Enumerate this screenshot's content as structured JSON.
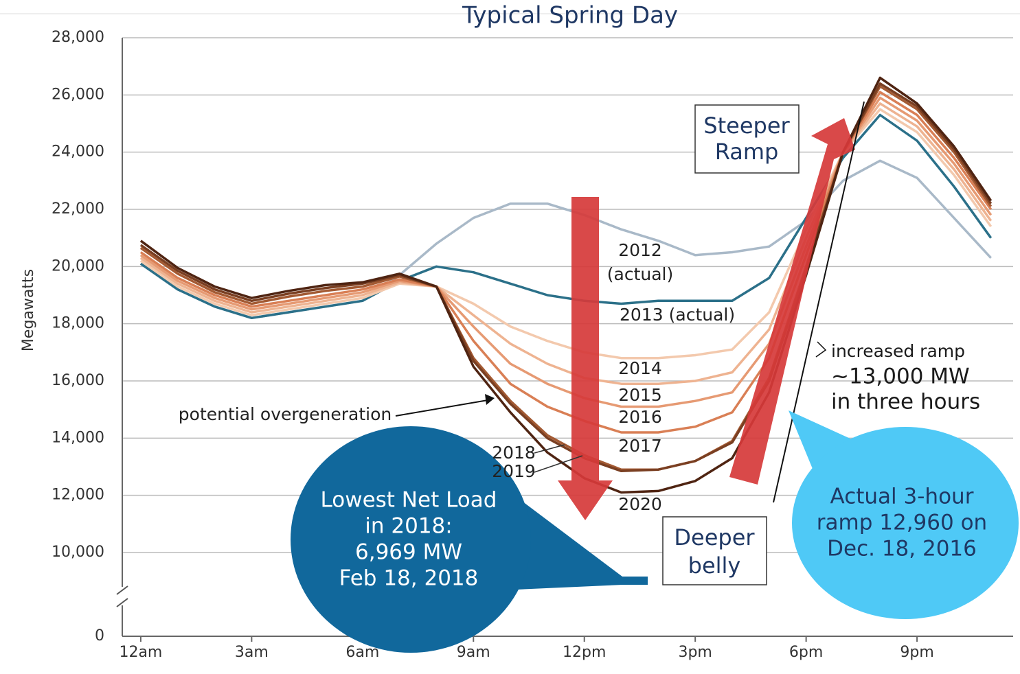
{
  "chart_data": {
    "type": "line",
    "title": "Typical Spring Day",
    "y_label": "Megawatts",
    "x": [
      0,
      1,
      2,
      3,
      4,
      5,
      6,
      7,
      8,
      9,
      10,
      11,
      12,
      13,
      14,
      15,
      16,
      17,
      18,
      19,
      20,
      21,
      22,
      23
    ],
    "xlim": [
      -0.5,
      23.6
    ],
    "xticks": [
      {
        "value": 0,
        "label": "12am"
      },
      {
        "value": 3,
        "label": "3am"
      },
      {
        "value": 6,
        "label": "6am"
      },
      {
        "value": 9,
        "label": "9am"
      },
      {
        "value": 12,
        "label": "12pm"
      },
      {
        "value": 15,
        "label": "3pm"
      },
      {
        "value": 18,
        "label": "6pm"
      },
      {
        "value": 21,
        "label": "9pm"
      }
    ],
    "ylim": [
      0,
      28000
    ],
    "yticks": [
      0,
      {
        "value": 10000,
        "label": "10,000"
      },
      {
        "value": 12000,
        "label": "12,000"
      },
      {
        "value": 14000,
        "label": "14,000"
      },
      {
        "value": 16000,
        "label": "16,000"
      },
      {
        "value": 18000,
        "label": "18,000"
      },
      {
        "value": 20000,
        "label": "20,000"
      },
      {
        "value": 22000,
        "label": "22,000"
      },
      {
        "value": 24000,
        "label": "24,000"
      },
      {
        "value": 26000,
        "label": "26,000"
      },
      {
        "value": 28000,
        "label": "28,000"
      }
    ],
    "axis_break": true,
    "grid": true,
    "series": [
      {
        "name": "2012",
        "note": "(actual)",
        "color": "#a9b9c8",
        "values": [
          20100,
          19200,
          18600,
          18200,
          18400,
          18600,
          18800,
          19700,
          20800,
          21700,
          22200,
          22200,
          21800,
          21300,
          20900,
          20400,
          20500,
          20700,
          21600,
          23000,
          23700,
          23100,
          21700,
          20300
        ]
      },
      {
        "name": "2013",
        "note": "(actual)",
        "color": "#2b7089",
        "values": [
          20100,
          19200,
          18600,
          18200,
          18400,
          18600,
          18800,
          19500,
          20000,
          19800,
          19400,
          19000,
          18800,
          18700,
          18800,
          18800,
          18800,
          19600,
          21700,
          23800,
          25300,
          24400,
          22800,
          21000
        ]
      },
      {
        "name": "2014",
        "color": "#f3c9ad",
        "values": [
          20200,
          19300,
          18700,
          18300,
          18500,
          18700,
          18900,
          19400,
          19300,
          18700,
          17900,
          17400,
          17000,
          16800,
          16800,
          16900,
          17100,
          18400,
          21300,
          24000,
          25500,
          24700,
          23200,
          21400
        ]
      },
      {
        "name": "2015",
        "color": "#eeb391",
        "values": [
          20300,
          19400,
          18800,
          18400,
          18600,
          18800,
          19000,
          19450,
          19300,
          18300,
          17300,
          16600,
          16100,
          15900,
          15900,
          16000,
          16300,
          17800,
          21000,
          24000,
          25700,
          24900,
          23400,
          21600
        ]
      },
      {
        "name": "2016",
        "color": "#e69a73",
        "values": [
          20400,
          19500,
          18900,
          18500,
          18700,
          18900,
          19100,
          19500,
          19300,
          17900,
          16600,
          15900,
          15400,
          15100,
          15100,
          15300,
          15600,
          17300,
          20700,
          24000,
          25900,
          25100,
          23600,
          21800
        ]
      },
      {
        "name": "2017",
        "color": "#d97f55",
        "values": [
          20500,
          19600,
          19000,
          18600,
          18800,
          19000,
          19200,
          19550,
          19300,
          17400,
          15900,
          15100,
          14600,
          14200,
          14200,
          14400,
          14900,
          16800,
          20400,
          24000,
          26100,
          25300,
          23800,
          22000
        ]
      },
      {
        "name": "2018",
        "color": "#a35a33",
        "values": [
          20650,
          19750,
          19100,
          18700,
          18950,
          19150,
          19300,
          19650,
          19300,
          16800,
          15300,
          14100,
          13400,
          12900,
          12900,
          13200,
          13900,
          16100,
          20000,
          24000,
          26300,
          25500,
          24000,
          22100
        ]
      },
      {
        "name": "2019",
        "color": "#7a3f22",
        "values": [
          20750,
          19850,
          19200,
          18800,
          19050,
          19250,
          19400,
          19700,
          19300,
          16700,
          15200,
          14000,
          13300,
          12850,
          12900,
          13200,
          13850,
          16000,
          19900,
          24000,
          26400,
          25600,
          24100,
          22200
        ]
      },
      {
        "name": "2020",
        "color": "#4f2412",
        "values": [
          20900,
          19950,
          19300,
          18900,
          19150,
          19350,
          19450,
          19750,
          19300,
          16500,
          14900,
          13500,
          12600,
          12100,
          12150,
          12500,
          13300,
          15600,
          19700,
          24000,
          26600,
          25700,
          24200,
          22300
        ]
      }
    ],
    "annotations": [
      [
        "potential overgeneration"
      ],
      [
        "increased ramp",
        "~13,000 MW",
        "in three hours"
      ],
      [
        "Steeper",
        "Ramp"
      ],
      [
        "Deeper",
        "belly"
      ],
      [
        "Lowest Net Load",
        "in 2018:",
        "6,969 MW",
        "Feb 18, 2018"
      ],
      [
        "Actual 3-hour",
        "ramp 12,960 on",
        "Dec. 18, 2016"
      ]
    ]
  }
}
